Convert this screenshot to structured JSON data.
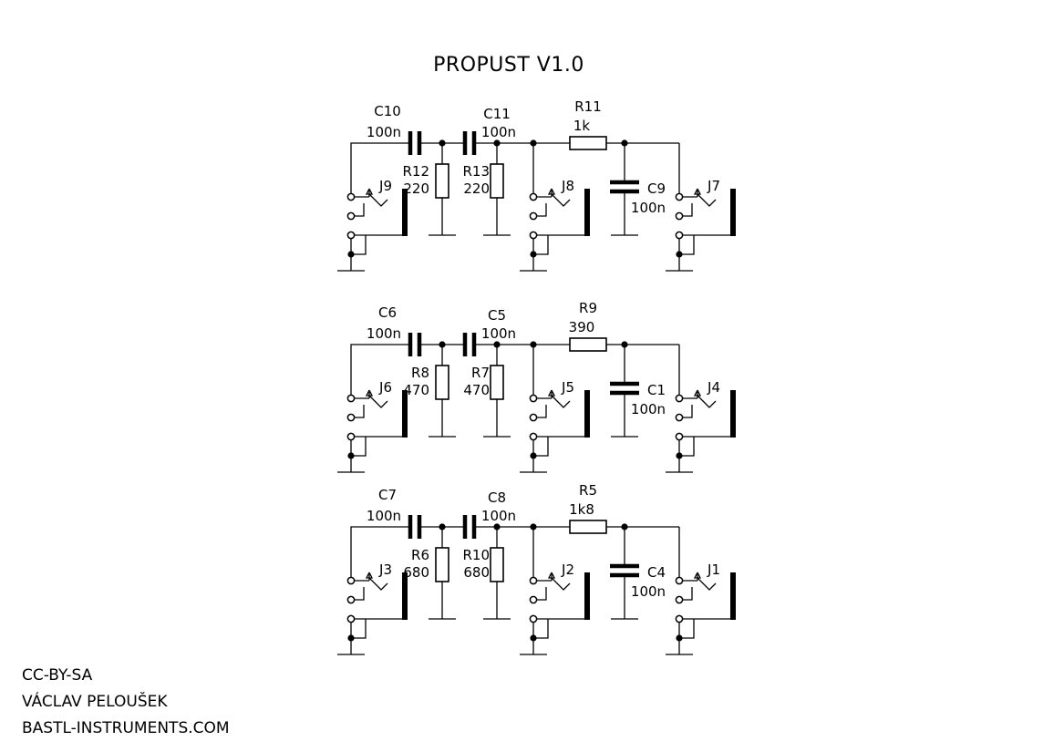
{
  "title": "PROPUST V1.0",
  "footer": [
    "CC-BY-SA",
    "VÁCLAV PELOUŠEK",
    "BASTL-INSTRUMENTS.COM"
  ],
  "stages": [
    {
      "input_jack": "J9",
      "c_a": {
        "ref": "C10",
        "value": "100n"
      },
      "c_b": {
        "ref": "C11",
        "value": "100n"
      },
      "r_a": {
        "ref": "R12",
        "value": "220"
      },
      "r_b": {
        "ref": "R13",
        "value": "220"
      },
      "mid_jack": "J8",
      "r_series": {
        "ref": "R11",
        "value": "1k"
      },
      "c_shunt": {
        "ref": "C9",
        "value": "100n"
      },
      "output_jack": "J7"
    },
    {
      "input_jack": "J6",
      "c_a": {
        "ref": "C6",
        "value": "100n"
      },
      "c_b": {
        "ref": "C5",
        "value": "100n"
      },
      "r_a": {
        "ref": "R8",
        "value": "470"
      },
      "r_b": {
        "ref": "R7",
        "value": "470"
      },
      "mid_jack": "J5",
      "r_series": {
        "ref": "R9",
        "value": "390"
      },
      "c_shunt": {
        "ref": "C1",
        "value": "100n"
      },
      "output_jack": "J4"
    },
    {
      "input_jack": "J3",
      "c_a": {
        "ref": "C7",
        "value": "100n"
      },
      "c_b": {
        "ref": "C8",
        "value": "100n"
      },
      "r_a": {
        "ref": "R6",
        "value": "680"
      },
      "r_b": {
        "ref": "R10",
        "value": "680"
      },
      "mid_jack": "J2",
      "r_series": {
        "ref": "R5",
        "value": "1k8"
      },
      "c_shunt": {
        "ref": "C4",
        "value": "100n"
      },
      "output_jack": "J1"
    }
  ]
}
